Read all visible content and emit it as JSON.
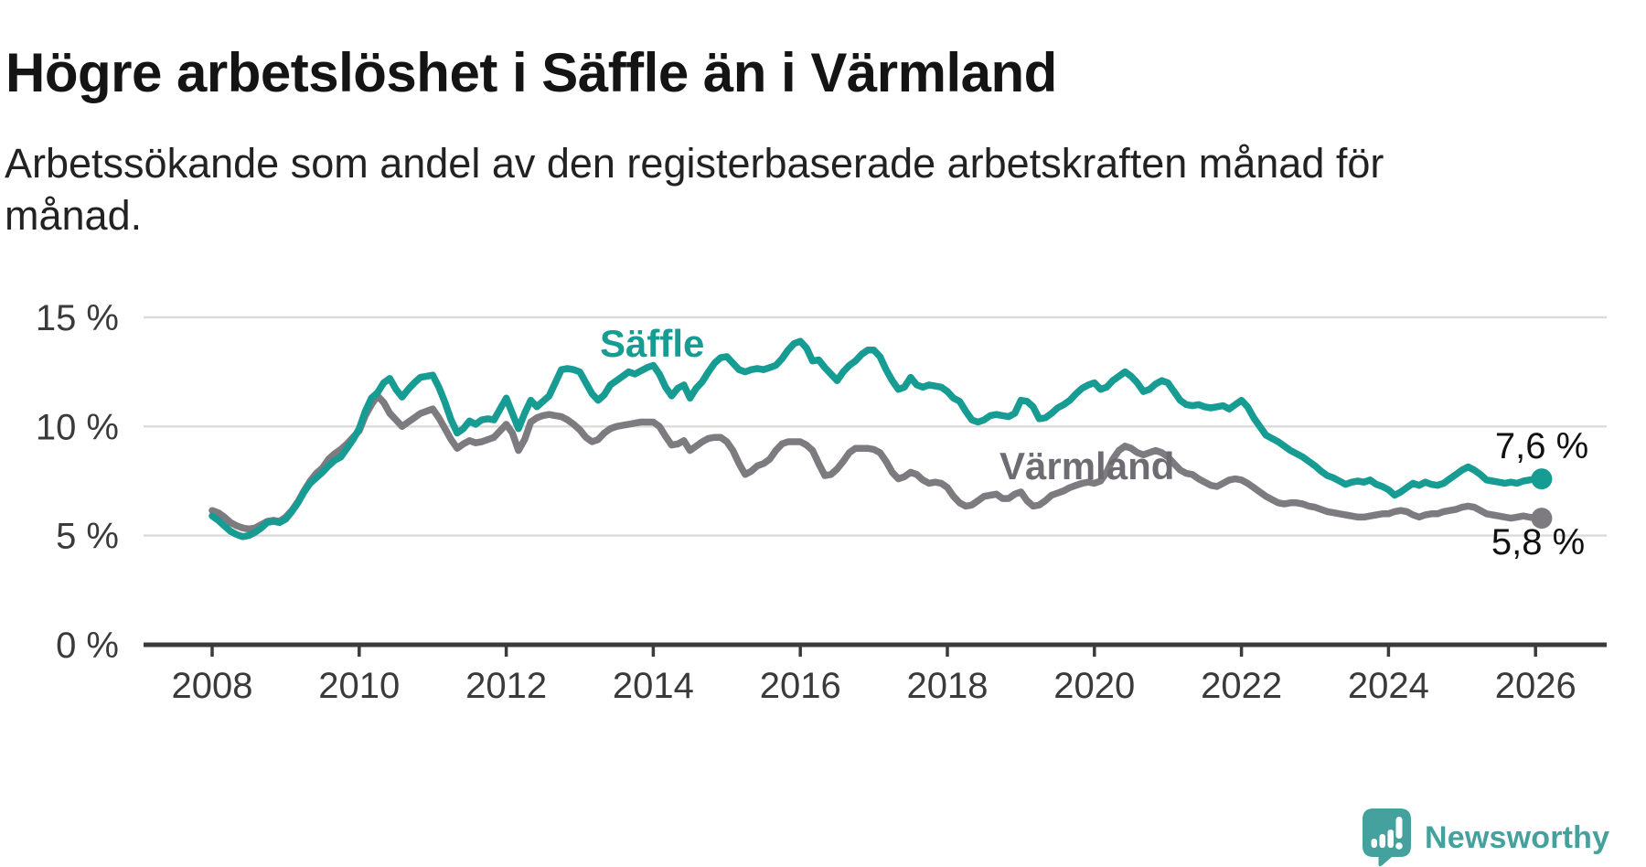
{
  "header": {
    "title": "Högre arbetslöshet i Säffle än i Värmland",
    "subtitle_line1": "Arbetssökande som andel av den registerbaserade arbetskraften månad för",
    "subtitle_line2": "månad."
  },
  "chart_data": {
    "type": "line",
    "title": "Högre arbetslöshet i Säffle än i Värmland",
    "ylabel": "",
    "xlabel": "",
    "unit": "%",
    "grid": "horizontal",
    "ylim": [
      0,
      15.7
    ],
    "x_start_year": 2008.0,
    "x_step_months": 1,
    "x_end_year": 2026.08,
    "yticks": [
      {
        "value": 0,
        "label": "0 %"
      },
      {
        "value": 5,
        "label": "5 %"
      },
      {
        "value": 10,
        "label": "10 %"
      },
      {
        "value": 15,
        "label": "15 %"
      }
    ],
    "xticks": [
      {
        "value": 2008,
        "label": "2008"
      },
      {
        "value": 2010,
        "label": "2010"
      },
      {
        "value": 2012,
        "label": "2012"
      },
      {
        "value": 2014,
        "label": "2014"
      },
      {
        "value": 2016,
        "label": "2016"
      },
      {
        "value": 2018,
        "label": "2018"
      },
      {
        "value": 2020,
        "label": "2020"
      },
      {
        "value": 2022,
        "label": "2022"
      },
      {
        "value": 2024,
        "label": "2024"
      },
      {
        "value": 2026,
        "label": "2026"
      }
    ],
    "series": [
      {
        "name": "Värmland",
        "color": "#7D7B80",
        "label_color": "#6E6C72",
        "end_label": "5,8 %",
        "final_value": 5.8,
        "values": [
          6.15,
          6.05,
          5.85,
          5.6,
          5.45,
          5.35,
          5.3,
          5.35,
          5.5,
          5.65,
          5.7,
          5.65,
          5.85,
          6.15,
          6.55,
          7.05,
          7.5,
          7.85,
          8.1,
          8.5,
          8.75,
          8.95,
          9.2,
          9.5,
          9.8,
          10.5,
          11.0,
          11.4,
          11.1,
          10.6,
          10.3,
          10.0,
          10.2,
          10.4,
          10.6,
          10.7,
          10.8,
          10.4,
          9.9,
          9.4,
          9.0,
          9.2,
          9.35,
          9.25,
          9.3,
          9.4,
          9.5,
          9.8,
          10.1,
          9.7,
          8.9,
          9.4,
          10.2,
          10.4,
          10.5,
          10.55,
          10.5,
          10.45,
          10.3,
          10.1,
          9.85,
          9.5,
          9.3,
          9.4,
          9.7,
          9.9,
          10.0,
          10.05,
          10.1,
          10.15,
          10.2,
          10.2,
          10.2,
          10.0,
          9.55,
          9.15,
          9.2,
          9.35,
          8.9,
          9.1,
          9.3,
          9.45,
          9.5,
          9.5,
          9.3,
          8.9,
          8.3,
          7.8,
          7.95,
          8.2,
          8.3,
          8.5,
          8.9,
          9.2,
          9.3,
          9.3,
          9.3,
          9.15,
          8.9,
          8.3,
          7.75,
          7.8,
          8.05,
          8.4,
          8.8,
          9.0,
          9.0,
          9.0,
          8.95,
          8.8,
          8.4,
          7.9,
          7.6,
          7.7,
          7.9,
          7.8,
          7.55,
          7.4,
          7.45,
          7.4,
          7.2,
          6.8,
          6.5,
          6.35,
          6.4,
          6.6,
          6.8,
          6.85,
          6.9,
          6.7,
          6.7,
          6.9,
          7.0,
          6.6,
          6.35,
          6.4,
          6.6,
          6.85,
          6.95,
          7.05,
          7.2,
          7.3,
          7.4,
          7.45,
          7.4,
          7.5,
          7.9,
          8.5,
          8.9,
          9.1,
          9.0,
          8.8,
          8.7,
          8.8,
          8.9,
          8.8,
          8.6,
          8.3,
          8.0,
          7.85,
          7.8,
          7.6,
          7.45,
          7.3,
          7.25,
          7.4,
          7.55,
          7.6,
          7.55,
          7.4,
          7.2,
          7.0,
          6.8,
          6.65,
          6.5,
          6.45,
          6.5,
          6.5,
          6.45,
          6.35,
          6.3,
          6.2,
          6.1,
          6.05,
          6.0,
          5.95,
          5.9,
          5.85,
          5.85,
          5.9,
          5.95,
          6.0,
          6.0,
          6.1,
          6.15,
          6.1,
          5.95,
          5.85,
          5.95,
          6.0,
          6.0,
          6.1,
          6.15,
          6.2,
          6.3,
          6.35,
          6.3,
          6.15,
          6.0,
          5.95,
          5.9,
          5.85,
          5.8,
          5.85,
          5.9,
          5.85,
          5.8,
          5.8
        ]
      },
      {
        "name": "Säffle",
        "color": "#169C92",
        "label_color": "#169C92",
        "end_label": "7,6 %",
        "final_value": 7.6,
        "values": [
          5.9,
          5.7,
          5.45,
          5.2,
          5.05,
          4.95,
          5.0,
          5.15,
          5.35,
          5.6,
          5.65,
          5.6,
          5.75,
          6.1,
          6.5,
          7.0,
          7.4,
          7.65,
          7.9,
          8.2,
          8.45,
          8.6,
          9.0,
          9.4,
          9.9,
          10.7,
          11.3,
          11.55,
          12.0,
          12.2,
          11.7,
          11.35,
          11.7,
          12.0,
          12.25,
          12.3,
          12.35,
          11.8,
          11.1,
          10.3,
          9.7,
          9.9,
          10.25,
          10.1,
          10.3,
          10.35,
          10.3,
          10.8,
          11.3,
          10.6,
          9.9,
          10.6,
          11.2,
          10.9,
          11.15,
          11.4,
          12.0,
          12.6,
          12.65,
          12.6,
          12.5,
          12.0,
          11.5,
          11.2,
          11.45,
          11.9,
          12.1,
          12.3,
          12.5,
          12.4,
          12.55,
          12.7,
          12.8,
          12.4,
          11.8,
          11.4,
          11.75,
          11.9,
          11.3,
          11.75,
          12.05,
          12.5,
          12.9,
          13.15,
          13.2,
          12.9,
          12.6,
          12.5,
          12.6,
          12.65,
          12.6,
          12.7,
          12.8,
          13.1,
          13.5,
          13.8,
          13.9,
          13.6,
          13.0,
          13.05,
          12.7,
          12.4,
          12.1,
          12.5,
          12.8,
          13.0,
          13.3,
          13.5,
          13.5,
          13.2,
          12.6,
          12.1,
          11.7,
          11.8,
          12.25,
          11.9,
          11.8,
          11.9,
          11.85,
          11.8,
          11.6,
          11.3,
          11.15,
          10.7,
          10.3,
          10.2,
          10.3,
          10.5,
          10.55,
          10.5,
          10.45,
          10.6,
          11.2,
          11.15,
          10.9,
          10.35,
          10.4,
          10.6,
          10.85,
          11.0,
          11.2,
          11.5,
          11.75,
          11.9,
          12.0,
          11.7,
          11.8,
          12.1,
          12.3,
          12.5,
          12.3,
          12.0,
          11.6,
          11.7,
          11.95,
          12.1,
          12.0,
          11.6,
          11.2,
          11.0,
          10.95,
          11.0,
          10.9,
          10.85,
          10.9,
          10.95,
          10.8,
          11.0,
          11.2,
          10.9,
          10.4,
          10.0,
          9.6,
          9.45,
          9.3,
          9.1,
          8.9,
          8.75,
          8.6,
          8.4,
          8.2,
          7.95,
          7.75,
          7.65,
          7.5,
          7.35,
          7.45,
          7.5,
          7.45,
          7.55,
          7.35,
          7.25,
          7.1,
          6.85,
          7.0,
          7.2,
          7.4,
          7.3,
          7.45,
          7.35,
          7.3,
          7.4,
          7.6,
          7.8,
          8.0,
          8.15,
          8.0,
          7.8,
          7.55,
          7.5,
          7.45,
          7.4,
          7.45,
          7.4,
          7.5,
          7.55,
          7.6,
          7.6
        ]
      }
    ],
    "annotations": {
      "series_label_saffle": "Säffle",
      "series_label_varmland": "Värmland",
      "end_label_saffle": "7,6 %",
      "end_label_varmland": "5,8 %"
    },
    "colors": {
      "saffle_line": "#169C92",
      "varmland_line": "#7D7B80",
      "gridline": "#DBDBDB",
      "axis": "#3B3B3B",
      "tick_text": "#3A3A3A"
    },
    "legend_position": "inline-labels"
  },
  "logo": {
    "text": "Newsworthy",
    "icon": "speech-bubble-bar-chart-icon",
    "color": "#45A19E"
  }
}
